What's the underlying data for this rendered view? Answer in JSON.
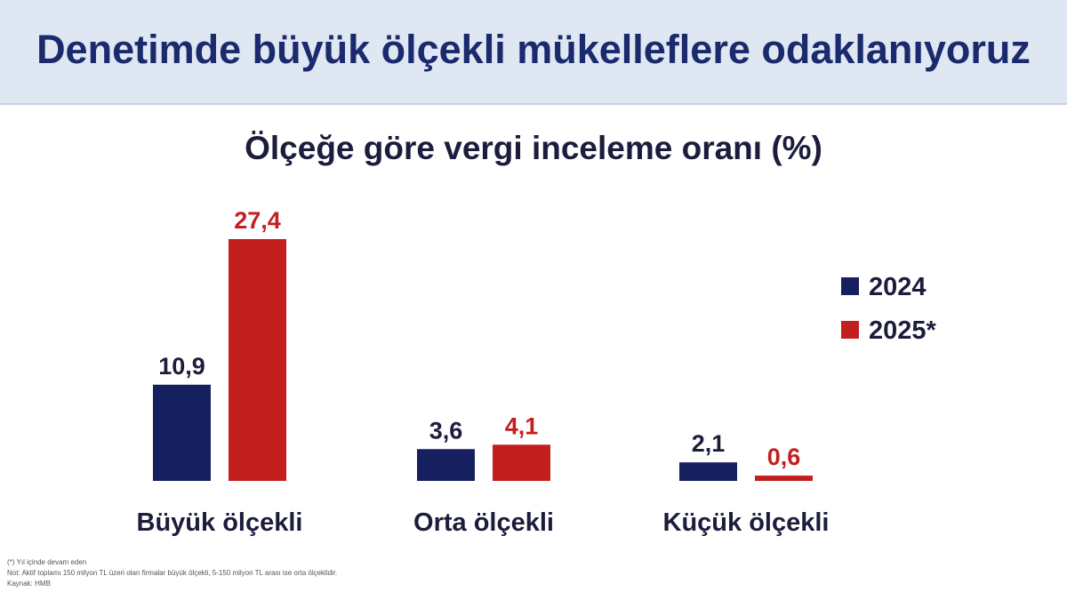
{
  "header": {
    "title": "Denetimde büyük ölçekli mükelleflere odaklanıyoruz"
  },
  "chart_data": {
    "type": "bar",
    "title": "Ölçeğe göre vergi inceleme oranı (%)",
    "categories": [
      "Büyük ölçekli",
      "Orta ölçekli",
      "Küçük ölçekli"
    ],
    "series": [
      {
        "name": "2024",
        "values": [
          10.9,
          3.6,
          2.1
        ],
        "labels": [
          "10,9",
          "3,6",
          "2,1"
        ],
        "color": "#16205e"
      },
      {
        "name": "2025*",
        "values": [
          27.4,
          4.1,
          0.6
        ],
        "labels": [
          "27,4",
          "4,1",
          "0,6"
        ],
        "color": "#c41f1f"
      }
    ],
    "ylim": [
      0,
      27.4
    ],
    "grid": false,
    "legend": "right"
  },
  "footnotes": {
    "note1": "(*) Yıl içinde devam eden",
    "note2": "Not: Aktif toplamı 150 milyon TL üzeri olan firmalar büyük ölçekli, 5-150 milyon TL arası ise orta ölçeklidir.",
    "source": "Kaynak: HMB"
  }
}
